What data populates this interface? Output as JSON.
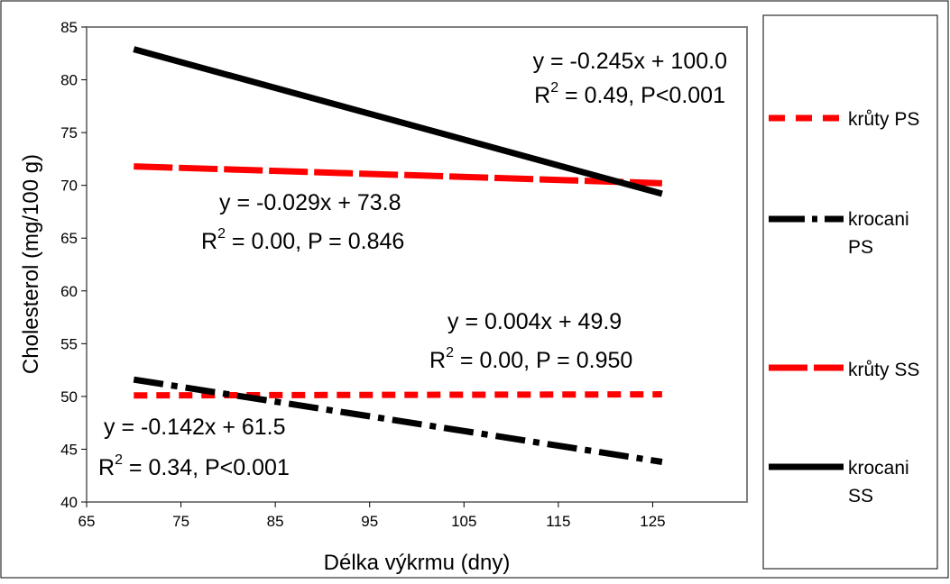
{
  "chart_data": {
    "type": "line",
    "xlabel": "Délka výkrmu (dny)",
    "ylabel": "Cholesterol (mg/100 g)",
    "xlim": [
      65,
      135
    ],
    "ylim": [
      40,
      85
    ],
    "x_ticks": [
      65,
      75,
      85,
      95,
      105,
      115,
      125
    ],
    "y_ticks": [
      40,
      45,
      50,
      55,
      60,
      65,
      70,
      75,
      80,
      85
    ],
    "grid": false,
    "legend_position": "right",
    "series": [
      {
        "name": "krůty PS",
        "color": "#ff0000",
        "dash": "short-dash",
        "x": [
          70,
          126
        ],
        "y": [
          50.1,
          50.2
        ],
        "equation": "y = 0.004x + 49.9",
        "r2_prefix": "R",
        "r2_exp": "2",
        "r2_rest": " = 0.00, P = 0.950"
      },
      {
        "name": "krocani PS",
        "color": "#000000",
        "dash": "dash-dot",
        "x": [
          70,
          126
        ],
        "y": [
          51.6,
          43.8
        ],
        "equation": "y = -0.142x + 61.5",
        "r2_prefix": "R",
        "r2_exp": "2",
        "r2_rest": " = 0.34, P<0.001"
      },
      {
        "name": "krůty SS",
        "color": "#ff0000",
        "dash": "long-dash",
        "x": [
          70,
          126
        ],
        "y": [
          71.8,
          70.2
        ],
        "equation": "y = -0.029x + 73.8",
        "r2_prefix": "R",
        "r2_exp": "2",
        "r2_rest": " = 0.00, P = 0.846"
      },
      {
        "name": "krocani SS",
        "color": "#000000",
        "dash": "solid",
        "x": [
          70,
          126
        ],
        "y": [
          82.9,
          69.2
        ],
        "equation": "y = -0.245x + 100.0",
        "r2_prefix": "R",
        "r2_exp": "2",
        "r2_rest": " = 0.49, P<0.001"
      }
    ],
    "legend": [
      {
        "line1": "krůty PS",
        "line2": ""
      },
      {
        "line1": "krocani",
        "line2": "PS"
      },
      {
        "line1": "krůty SS",
        "line2": ""
      },
      {
        "line1": "krocani",
        "line2": "SS"
      }
    ]
  }
}
